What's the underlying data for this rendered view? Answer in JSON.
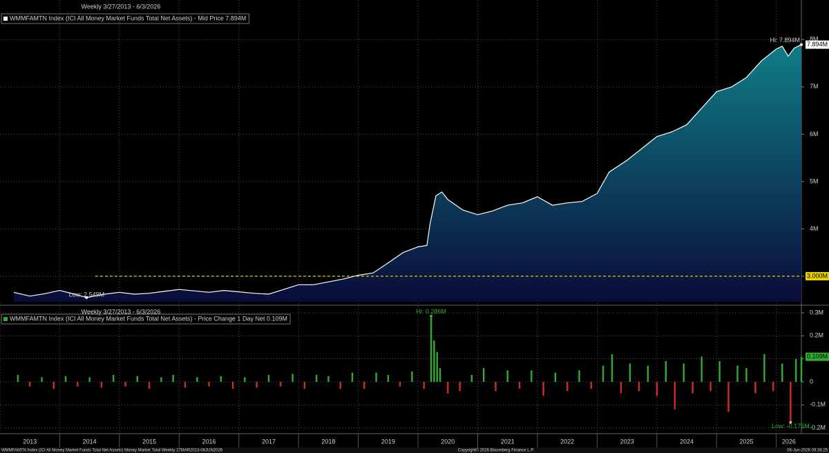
{
  "chart_data": [
    {
      "type": "area",
      "subtitle": "Weekly 3/27/2013 - 6/3/2026",
      "legend": "WMMFAMTN Index (ICI All Money Market Funds Total Net Assets) - Mid Price 7.894M",
      "line_color": "#ffffff",
      "fill_top": "#0f7d86",
      "fill_bottom": "#0a0c3a",
      "grid": true,
      "x": [
        2013.23,
        2013.5,
        2013.75,
        2014.0,
        2014.25,
        2014.45,
        2014.75,
        2015.0,
        2015.25,
        2015.5,
        2015.75,
        2016.0,
        2016.25,
        2016.5,
        2016.75,
        2017.0,
        2017.25,
        2017.5,
        2017.75,
        2018.0,
        2018.25,
        2018.5,
        2018.75,
        2019.0,
        2019.25,
        2019.5,
        2019.75,
        2020.0,
        2020.15,
        2020.2,
        2020.3,
        2020.4,
        2020.5,
        2020.75,
        2021.0,
        2021.25,
        2021.5,
        2021.75,
        2022.0,
        2022.25,
        2022.5,
        2022.75,
        2023.0,
        2023.2,
        2023.5,
        2023.75,
        2024.0,
        2024.25,
        2024.5,
        2024.75,
        2025.0,
        2025.25,
        2025.5,
        2025.75,
        2026.0,
        2026.1,
        2026.2,
        2026.3,
        2026.42
      ],
      "values": [
        2.66,
        2.58,
        2.63,
        2.7,
        2.62,
        2.549,
        2.62,
        2.66,
        2.62,
        2.64,
        2.68,
        2.72,
        2.69,
        2.66,
        2.7,
        2.67,
        2.64,
        2.62,
        2.72,
        2.82,
        2.82,
        2.88,
        2.94,
        3.02,
        3.07,
        3.28,
        3.5,
        3.62,
        3.65,
        4.1,
        4.7,
        4.78,
        4.62,
        4.4,
        4.3,
        4.38,
        4.5,
        4.55,
        4.68,
        4.5,
        4.55,
        4.58,
        4.75,
        5.2,
        5.45,
        5.7,
        5.95,
        6.05,
        6.2,
        6.55,
        6.9,
        7.0,
        7.2,
        7.55,
        7.8,
        7.86,
        7.65,
        7.82,
        7.894
      ],
      "xlim": [
        2013,
        2026.42
      ],
      "xticks": [
        2014,
        2015,
        2016,
        2017,
        2018,
        2019,
        2020,
        2021,
        2022,
        2023,
        2024,
        2025,
        2026
      ],
      "ylim": [
        2.46,
        8.72
      ],
      "yticks": [
        {
          "value": 3,
          "label": "3M"
        },
        {
          "value": 4,
          "label": "4M"
        },
        {
          "value": 5,
          "label": "5M"
        },
        {
          "value": 6,
          "label": "6M"
        },
        {
          "value": 7,
          "label": "7M"
        },
        {
          "value": 8,
          "label": "8M"
        }
      ],
      "high": {
        "x": 2026.42,
        "value": 7.894,
        "label": "Hi: 7.894M"
      },
      "low": {
        "x": 2014.45,
        "value": 2.549,
        "label": "Low: 2.549M"
      },
      "last": {
        "value": 7.894,
        "label": "7.894M",
        "color": "#ffffff"
      },
      "reference": {
        "value": 3,
        "label": "3.000M",
        "color": "#e8d200"
      }
    },
    {
      "type": "bar",
      "subtitle": "Weekly 3/27/2013 - 6/3/2026",
      "legend": "WMMFAMTN Index (ICI All Money Market Funds Total Net Assets) - Price Change 1 Day Net 0.109M",
      "up_color": "#2fae2f",
      "down_color": "#d42a2a",
      "grid": true,
      "x": [
        2013.3,
        2013.5,
        2013.7,
        2013.9,
        2014.1,
        2014.3,
        2014.5,
        2014.7,
        2014.9,
        2015.1,
        2015.3,
        2015.5,
        2015.7,
        2015.9,
        2016.1,
        2016.3,
        2016.5,
        2016.7,
        2016.9,
        2017.1,
        2017.3,
        2017.5,
        2017.7,
        2017.9,
        2018.1,
        2018.3,
        2018.5,
        2018.7,
        2018.9,
        2019.1,
        2019.3,
        2019.5,
        2019.7,
        2019.9,
        2020.1,
        2020.22,
        2020.27,
        2020.32,
        2020.37,
        2020.5,
        2020.7,
        2020.9,
        2021.1,
        2021.3,
        2021.5,
        2021.7,
        2021.9,
        2022.1,
        2022.3,
        2022.5,
        2022.7,
        2022.9,
        2023.1,
        2023.25,
        2023.4,
        2023.55,
        2023.7,
        2023.85,
        2024.0,
        2024.15,
        2024.3,
        2024.45,
        2024.6,
        2024.75,
        2024.9,
        2025.05,
        2025.2,
        2025.35,
        2025.5,
        2025.65,
        2025.8,
        2025.95,
        2026.1,
        2026.24,
        2026.33,
        2026.42
      ],
      "values": [
        0.03,
        -0.02,
        0.02,
        -0.03,
        0.025,
        -0.02,
        0.02,
        -0.025,
        0.03,
        -0.02,
        0.025,
        -0.03,
        0.02,
        0.03,
        -0.025,
        0.02,
        -0.02,
        0.025,
        -0.03,
        0.02,
        -0.025,
        0.03,
        -0.02,
        0.035,
        -0.03,
        0.03,
        0.025,
        -0.03,
        0.04,
        -0.03,
        0.04,
        0.03,
        -0.02,
        0.045,
        -0.03,
        0.286,
        0.18,
        0.13,
        0.06,
        -0.05,
        -0.04,
        0.03,
        0.06,
        -0.04,
        0.05,
        -0.03,
        0.05,
        -0.06,
        0.04,
        -0.04,
        0.05,
        -0.03,
        0.07,
        0.12,
        -0.05,
        0.08,
        -0.04,
        0.07,
        -0.06,
        0.09,
        -0.12,
        0.08,
        -0.05,
        0.11,
        -0.04,
        0.09,
        -0.13,
        0.07,
        0.06,
        -0.05,
        0.12,
        -0.04,
        0.08,
        -0.176,
        0.1,
        0.109
      ],
      "xlim": [
        2013,
        2026.42
      ],
      "xticks": [
        {
          "value": 2013,
          "label": "2013"
        },
        {
          "value": 2014,
          "label": "2014"
        },
        {
          "value": 2015,
          "label": "2015"
        },
        {
          "value": 2016,
          "label": "2016"
        },
        {
          "value": 2017,
          "label": "2017"
        },
        {
          "value": 2018,
          "label": "2018"
        },
        {
          "value": 2019,
          "label": "2019"
        },
        {
          "value": 2020,
          "label": "2020"
        },
        {
          "value": 2021,
          "label": "2021"
        },
        {
          "value": 2022,
          "label": "2022"
        },
        {
          "value": 2023,
          "label": "2023"
        },
        {
          "value": 2024,
          "label": "2024"
        },
        {
          "value": 2025,
          "label": "2025"
        },
        {
          "value": 2026,
          "label": "2026"
        }
      ],
      "ylim": [
        -0.225,
        0.318
      ],
      "yticks": [
        {
          "value": 0.3,
          "label": "0.3M"
        },
        {
          "value": 0.2,
          "label": "0.2M"
        },
        {
          "value": 0.1,
          "label": "0.1M"
        },
        0,
        {
          "value": -0.1,
          "label": "-0.1M"
        },
        {
          "value": -0.2,
          "label": "-0.2M"
        }
      ],
      "high": {
        "x": 2020.22,
        "value": 0.286,
        "label": "Hi: 0.286M"
      },
      "low": {
        "x": 2026.24,
        "value": -0.176,
        "label": "Low: -0.176M"
      },
      "last": {
        "value": 0.109,
        "label": "0.109M",
        "color": "#2fae2f"
      }
    }
  ],
  "footer": {
    "left": "WMMFAMTN Index (ICI All Money Market Funds Total Net Assets) Money Market Total Weekly 27MAR2013-06JUN2026",
    "center": "Copyright© 2026 Bloomberg Finance L.P.",
    "right": "06-Jun-2026 09:38:25"
  }
}
